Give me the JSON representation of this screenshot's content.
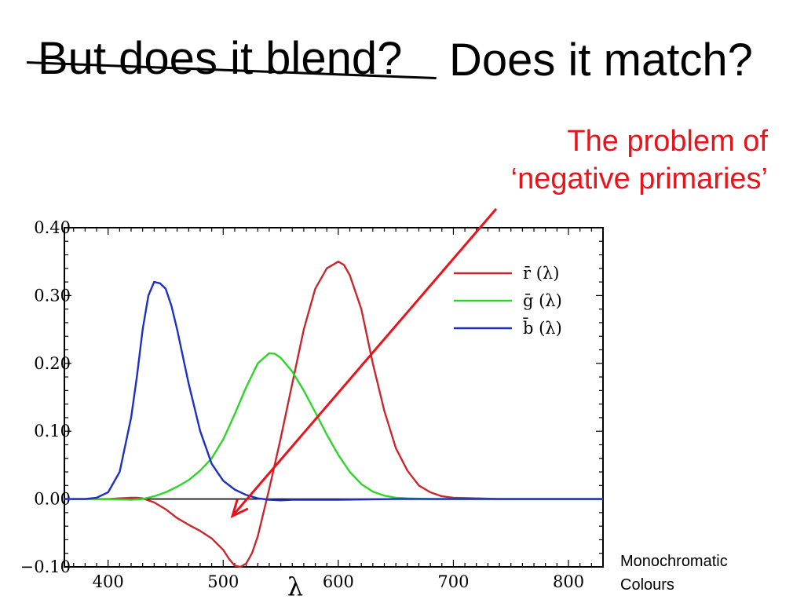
{
  "slide": {
    "struck_title": "But does it blend?",
    "title": "Does it match?",
    "callout_line1": "The problem of",
    "callout_line2": "‘negative primaries’",
    "footnote_line1": "Monochromatic",
    "footnote_line2": "Colours",
    "callout_color": "#e8141b"
  },
  "chart_data": {
    "type": "line",
    "xlabel": "λ",
    "ylabel": "",
    "xlim": [
      362,
      830
    ],
    "ylim": [
      -0.1,
      0.4
    ],
    "xticks": [
      400,
      500,
      600,
      700,
      800
    ],
    "xtick_labels": [
      "400",
      "500",
      "600",
      "700",
      "800"
    ],
    "yticks": [
      -0.1,
      0.0,
      0.1,
      0.2,
      0.3,
      0.4
    ],
    "ytick_labels": [
      "−0.10",
      "0.00",
      "0.10",
      "0.20",
      "0.30",
      "0.40"
    ],
    "zero_line": true,
    "grid": false,
    "legend_position": "top-right",
    "annotation": {
      "text": "The problem of ‘negative primaries’",
      "points_to": {
        "x": 508,
        "y": -0.025
      }
    },
    "series": [
      {
        "name": "r̄ (λ)",
        "color": "#c8282d",
        "x": [
          362,
          380,
          400,
          410,
          420,
          425,
          430,
          440,
          450,
          460,
          470,
          480,
          490,
          500,
          505,
          510,
          515,
          520,
          525,
          530,
          540,
          550,
          560,
          570,
          580,
          590,
          600,
          605,
          610,
          620,
          630,
          640,
          650,
          660,
          670,
          680,
          690,
          700,
          720,
          740,
          760,
          780,
          800,
          830
        ],
        "y": [
          0.0,
          0.0,
          0.0,
          0.001,
          0.002,
          0.002,
          0.001,
          -0.005,
          -0.015,
          -0.028,
          -0.038,
          -0.047,
          -0.058,
          -0.075,
          -0.088,
          -0.098,
          -0.1,
          -0.095,
          -0.08,
          -0.055,
          0.015,
          0.09,
          0.17,
          0.25,
          0.31,
          0.34,
          0.35,
          0.345,
          0.33,
          0.28,
          0.2,
          0.13,
          0.075,
          0.042,
          0.02,
          0.01,
          0.004,
          0.002,
          0.001,
          0.0,
          0.0,
          0.0,
          0.0,
          0.0
        ]
      },
      {
        "name": "ḡ (λ)",
        "color": "#2ed52a",
        "x": [
          362,
          400,
          420,
          430,
          440,
          450,
          460,
          470,
          480,
          490,
          500,
          510,
          520,
          530,
          540,
          545,
          550,
          560,
          570,
          580,
          590,
          600,
          610,
          620,
          630,
          640,
          650,
          660,
          680,
          700,
          740,
          780,
          830
        ],
        "y": [
          0.0,
          0.0,
          -0.001,
          0.0,
          0.004,
          0.01,
          0.018,
          0.028,
          0.042,
          0.06,
          0.088,
          0.125,
          0.165,
          0.2,
          0.215,
          0.214,
          0.208,
          0.188,
          0.16,
          0.128,
          0.095,
          0.065,
          0.04,
          0.022,
          0.011,
          0.005,
          0.002,
          0.001,
          0.0,
          0.0,
          0.0,
          0.0,
          0.0
        ]
      },
      {
        "name": "b̄ (λ)",
        "color": "#1f2fc6",
        "x": [
          362,
          380,
          390,
          400,
          410,
          420,
          425,
          430,
          435,
          440,
          445,
          450,
          455,
          460,
          470,
          480,
          490,
          500,
          510,
          520,
          530,
          540,
          550,
          560,
          580,
          600,
          650,
          700,
          760,
          830
        ],
        "y": [
          0.0,
          0.0,
          0.002,
          0.01,
          0.04,
          0.12,
          0.18,
          0.25,
          0.3,
          0.32,
          0.318,
          0.31,
          0.285,
          0.25,
          0.17,
          0.1,
          0.052,
          0.027,
          0.014,
          0.006,
          0.001,
          -0.001,
          -0.002,
          -0.001,
          -0.001,
          -0.001,
          0.0,
          0.0,
          0.0,
          0.0
        ]
      }
    ]
  }
}
